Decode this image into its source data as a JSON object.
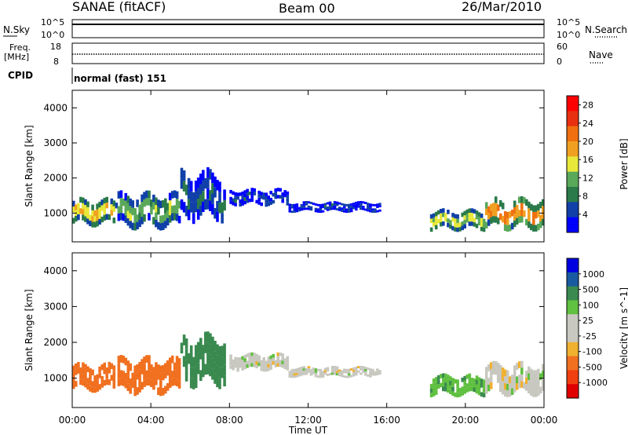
{
  "header": {
    "station": "SANAE (fitACF)",
    "beam": "Beam 00",
    "date": "26/Mar/2010"
  },
  "aux_panels": {
    "nsky_label": "N.Sky",
    "nsky_ticks": [
      "10^5",
      "10^0"
    ],
    "nsearch_label": "N.Search",
    "nsearch_ticks": [
      "10^5",
      "10^0"
    ],
    "freq_label_1": "Freq.",
    "freq_label_2": "[MHz]",
    "freq_ticks": [
      "18",
      "8"
    ],
    "nave_label": "Nave",
    "nave_ticks": [
      "60",
      "0"
    ],
    "cpid_label": "CPID",
    "cpid_value": "normal (fast) 151"
  },
  "colors": {
    "power_scale": [
      "#0000ff",
      "#1040a8",
      "#2a7a4a",
      "#5aa85a",
      "#e8e83a",
      "#f0a020",
      "#f07010",
      "#e83010",
      "#ff0000"
    ],
    "velocity_scale": [
      "#e00000",
      "#f04010",
      "#f07020",
      "#f0b030",
      "#c8c8c0",
      "#c8c8c0",
      "#60c040",
      "#3a8a50",
      "#1a5aa0",
      "#0000e0"
    ]
  },
  "chart_data": [
    {
      "type": "heatmap",
      "title": "Power",
      "ylabel": "Slant Range [km]",
      "xlabel": "Time UT",
      "x_range_hours": [
        0,
        24
      ],
      "x_ticks": [
        "00:00",
        "04:00",
        "08:00",
        "12:00",
        "16:00",
        "20:00",
        "00:00"
      ],
      "y_range_km": [
        180,
        4500
      ],
      "y_ticks": [
        "1000",
        "2000",
        "3000",
        "4000"
      ],
      "colorbar": {
        "label": "Power [dB]",
        "ticks": [
          "4",
          "8",
          "12",
          "16",
          "20",
          "24",
          "28"
        ],
        "range": [
          0,
          30
        ]
      },
      "echo_bands": [
        {
          "t0": 0.0,
          "t1": 2.3,
          "r0": 700,
          "r1": 1350,
          "value": 16
        },
        {
          "t0": 2.3,
          "t1": 5.5,
          "r0": 650,
          "r1": 1500,
          "value": 12
        },
        {
          "t0": 5.5,
          "t1": 7.8,
          "r0": 900,
          "r1": 2100,
          "value": 6
        },
        {
          "t0": 8.0,
          "t1": 11.0,
          "r0": 1250,
          "r1": 1650,
          "value": 4
        },
        {
          "t0": 11.0,
          "t1": 15.7,
          "r0": 1050,
          "r1": 1300,
          "value": 4
        },
        {
          "t0": 18.2,
          "t1": 21.0,
          "r0": 550,
          "r1": 1050,
          "value": 14
        },
        {
          "t0": 21.0,
          "t1": 24.0,
          "r0": 600,
          "r1": 1350,
          "value": 20
        }
      ]
    },
    {
      "type": "heatmap",
      "title": "Velocity",
      "ylabel": "Slant Range [km]",
      "xlabel": "Time UT",
      "x_range_hours": [
        0,
        24
      ],
      "x_ticks": [
        "00:00",
        "04:00",
        "08:00",
        "12:00",
        "16:00",
        "20:00",
        "00:00"
      ],
      "y_range_km": [
        180,
        4500
      ],
      "y_ticks": [
        "1000",
        "2000",
        "3000",
        "4000"
      ],
      "colorbar": {
        "label": "Velocity [m s^-1]",
        "ticks": [
          "1000",
          "500",
          "100",
          "25",
          "-25",
          "-100",
          "-500",
          "-1000"
        ]
      },
      "echo_bands": [
        {
          "t0": 0.0,
          "t1": 2.3,
          "r0": 700,
          "r1": 1350,
          "value": -300
        },
        {
          "t0": 2.3,
          "t1": 5.5,
          "r0": 650,
          "r1": 1500,
          "value": -150
        },
        {
          "t0": 5.5,
          "t1": 7.8,
          "r0": 900,
          "r1": 2100,
          "value": 150
        },
        {
          "t0": 8.0,
          "t1": 11.0,
          "r0": 1250,
          "r1": 1650,
          "value": 0
        },
        {
          "t0": 11.0,
          "t1": 15.7,
          "r0": 1050,
          "r1": 1300,
          "value": 0
        },
        {
          "t0": 18.2,
          "t1": 21.0,
          "r0": 550,
          "r1": 1050,
          "value": 80
        },
        {
          "t0": 21.0,
          "t1": 24.0,
          "r0": 600,
          "r1": 1350,
          "value": 0
        }
      ]
    }
  ]
}
